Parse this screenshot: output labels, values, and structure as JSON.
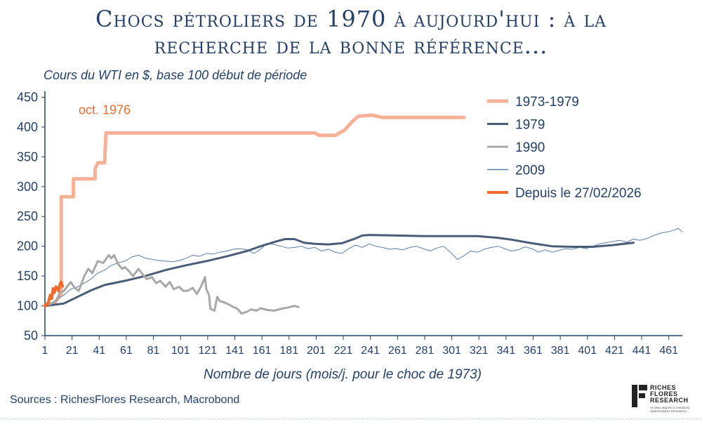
{
  "title_line1": "Chocs pétroliers de 1970 à aujourd'hui : à la",
  "title_line2": "recherche de la bonne référence...",
  "subtitle": "Cours du WTI en $, base 100 début de période",
  "source": "Sources : RichesFlores Research, Macrobond",
  "logo": {
    "line1": "RICHES",
    "line2": "FLORES",
    "line3": "RESEARCH",
    "tagline": "GLOBAL MACRO & THEMATIC INDEPENDENT RESEARCH"
  },
  "chart_data": {
    "type": "line",
    "xlabel": "Nombre de jours (mois/j. pour le choc de 1973)",
    "xlim": [
      1,
      471
    ],
    "ylim": [
      50,
      460
    ],
    "x_ticks": [
      1,
      21,
      41,
      61,
      81,
      101,
      121,
      141,
      161,
      181,
      201,
      221,
      241,
      261,
      281,
      301,
      321,
      341,
      361,
      381,
      401,
      421,
      441,
      461
    ],
    "y_ticks": [
      50,
      100,
      150,
      200,
      250,
      300,
      350,
      400,
      450
    ],
    "annotation": {
      "text": "oct. 1976",
      "x": 45,
      "y": 422,
      "color": "#f06a2b"
    },
    "legend_position": "top-right",
    "series": [
      {
        "name": "1973-1979",
        "color": "#f7b196",
        "width": 5,
        "points": [
          [
            1,
            100
          ],
          [
            8,
            105
          ],
          [
            10,
            110
          ],
          [
            13,
            120
          ],
          [
            13,
            283
          ],
          [
            22,
            283
          ],
          [
            22,
            313
          ],
          [
            38,
            313
          ],
          [
            38,
            330
          ],
          [
            40,
            340
          ],
          [
            45,
            340
          ],
          [
            46,
            390
          ],
          [
            200,
            390
          ],
          [
            203,
            386
          ],
          [
            215,
            386
          ],
          [
            222,
            395
          ],
          [
            224,
            400
          ],
          [
            228,
            410
          ],
          [
            232,
            418
          ],
          [
            242,
            420
          ],
          [
            250,
            416
          ],
          [
            310,
            416
          ]
        ]
      },
      {
        "name": "1979",
        "color": "#4a5d78",
        "width": 3,
        "points": [
          [
            1,
            100
          ],
          [
            5,
            101
          ],
          [
            15,
            104
          ],
          [
            25,
            115
          ],
          [
            35,
            126
          ],
          [
            45,
            135
          ],
          [
            60,
            142
          ],
          [
            75,
            150
          ],
          [
            90,
            160
          ],
          [
            105,
            168
          ],
          [
            120,
            175
          ],
          [
            135,
            183
          ],
          [
            150,
            192
          ],
          [
            160,
            200
          ],
          [
            170,
            207
          ],
          [
            178,
            212
          ],
          [
            185,
            212
          ],
          [
            192,
            206
          ],
          [
            200,
            204
          ],
          [
            210,
            203
          ],
          [
            220,
            205
          ],
          [
            230,
            213
          ],
          [
            235,
            218
          ],
          [
            240,
            219
          ],
          [
            260,
            218
          ],
          [
            280,
            217
          ],
          [
            300,
            217
          ],
          [
            320,
            217
          ],
          [
            335,
            214
          ],
          [
            345,
            211
          ],
          [
            360,
            205
          ],
          [
            375,
            200
          ],
          [
            390,
            199
          ],
          [
            405,
            199
          ],
          [
            420,
            202
          ],
          [
            435,
            206
          ]
        ]
      },
      {
        "name": "1990",
        "color": "#a8a8a8",
        "width": 3,
        "points": [
          [
            1,
            100
          ],
          [
            5,
            103
          ],
          [
            9,
            108
          ],
          [
            12,
            122
          ],
          [
            15,
            125
          ],
          [
            18,
            134
          ],
          [
            20,
            140
          ],
          [
            23,
            130
          ],
          [
            26,
            125
          ],
          [
            30,
            150
          ],
          [
            33,
            162
          ],
          [
            36,
            155
          ],
          [
            40,
            175
          ],
          [
            44,
            172
          ],
          [
            48,
            185
          ],
          [
            50,
            180
          ],
          [
            52,
            185
          ],
          [
            55,
            170
          ],
          [
            58,
            162
          ],
          [
            60,
            165
          ],
          [
            63,
            158
          ],
          [
            66,
            150
          ],
          [
            70,
            162
          ],
          [
            73,
            153
          ],
          [
            76,
            145
          ],
          [
            80,
            148
          ],
          [
            83,
            138
          ],
          [
            86,
            142
          ],
          [
            90,
            132
          ],
          [
            93,
            140
          ],
          [
            96,
            128
          ],
          [
            100,
            132
          ],
          [
            103,
            125
          ],
          [
            106,
            125
          ],
          [
            110,
            130
          ],
          [
            113,
            120
          ],
          [
            116,
            132
          ],
          [
            119,
            148
          ],
          [
            120,
            128
          ],
          [
            122,
            118
          ],
          [
            123,
            95
          ],
          [
            126,
            92
          ],
          [
            128,
            115
          ],
          [
            130,
            108
          ],
          [
            133,
            106
          ],
          [
            136,
            103
          ],
          [
            140,
            98
          ],
          [
            143,
            95
          ],
          [
            146,
            87
          ],
          [
            150,
            90
          ],
          [
            153,
            94
          ],
          [
            157,
            92
          ],
          [
            160,
            96
          ],
          [
            165,
            93
          ],
          [
            170,
            92
          ],
          [
            175,
            95
          ],
          [
            180,
            97
          ],
          [
            185,
            100
          ],
          [
            188,
            98
          ]
        ]
      },
      {
        "name": "2009",
        "color": "#5b7da8",
        "width": 1,
        "points": [
          [
            1,
            100
          ],
          [
            6,
            104
          ],
          [
            10,
            112
          ],
          [
            15,
            118
          ],
          [
            20,
            128
          ],
          [
            25,
            132
          ],
          [
            30,
            138
          ],
          [
            35,
            145
          ],
          [
            40,
            155
          ],
          [
            45,
            160
          ],
          [
            50,
            168
          ],
          [
            55,
            172
          ],
          [
            60,
            175
          ],
          [
            65,
            182
          ],
          [
            70,
            185
          ],
          [
            75,
            180
          ],
          [
            80,
            178
          ],
          [
            85,
            176
          ],
          [
            90,
            175
          ],
          [
            95,
            174
          ],
          [
            100,
            176
          ],
          [
            105,
            180
          ],
          [
            110,
            185
          ],
          [
            115,
            183
          ],
          [
            120,
            188
          ],
          [
            125,
            187
          ],
          [
            130,
            190
          ],
          [
            135,
            192
          ],
          [
            140,
            195
          ],
          [
            145,
            196
          ],
          [
            150,
            194
          ],
          [
            155,
            188
          ],
          [
            160,
            195
          ],
          [
            165,
            205
          ],
          [
            170,
            203
          ],
          [
            175,
            200
          ],
          [
            180,
            197
          ],
          [
            185,
            198
          ],
          [
            190,
            200
          ],
          [
            195,
            196
          ],
          [
            200,
            198
          ],
          [
            205,
            192
          ],
          [
            210,
            195
          ],
          [
            215,
            190
          ],
          [
            220,
            188
          ],
          [
            225,
            196
          ],
          [
            230,
            202
          ],
          [
            235,
            198
          ],
          [
            240,
            204
          ],
          [
            245,
            200
          ],
          [
            250,
            198
          ],
          [
            255,
            195
          ],
          [
            260,
            196
          ],
          [
            265,
            194
          ],
          [
            270,
            198
          ],
          [
            275,
            200
          ],
          [
            280,
            196
          ],
          [
            285,
            192
          ],
          [
            290,
            197
          ],
          [
            295,
            200
          ],
          [
            300,
            190
          ],
          [
            305,
            178
          ],
          [
            310,
            184
          ],
          [
            315,
            192
          ],
          [
            320,
            190
          ],
          [
            325,
            195
          ],
          [
            330,
            198
          ],
          [
            335,
            200
          ],
          [
            340,
            196
          ],
          [
            345,
            192
          ],
          [
            350,
            194
          ],
          [
            355,
            199
          ],
          [
            360,
            196
          ],
          [
            365,
            190
          ],
          [
            370,
            194
          ],
          [
            375,
            190
          ],
          [
            380,
            193
          ],
          [
            385,
            196
          ],
          [
            390,
            195
          ],
          [
            395,
            198
          ],
          [
            400,
            196
          ],
          [
            405,
            200
          ],
          [
            410,
            204
          ],
          [
            415,
            206
          ],
          [
            420,
            208
          ],
          [
            425,
            210
          ],
          [
            430,
            207
          ],
          [
            435,
            212
          ],
          [
            440,
            210
          ],
          [
            445,
            213
          ],
          [
            450,
            218
          ],
          [
            455,
            222
          ],
          [
            460,
            224
          ],
          [
            465,
            227
          ],
          [
            468,
            230
          ],
          [
            471,
            224
          ]
        ]
      },
      {
        "name": "Depuis le 27/02/2026",
        "color": "#f06a2b",
        "width": 4,
        "points": [
          [
            1,
            100
          ],
          [
            2,
            103
          ],
          [
            3,
            102
          ],
          [
            4,
            110
          ],
          [
            5,
            118
          ],
          [
            6,
            112
          ],
          [
            7,
            129
          ],
          [
            8,
            122
          ],
          [
            9,
            132
          ],
          [
            10,
            130
          ],
          [
            11,
            125
          ],
          [
            12,
            136
          ],
          [
            13,
            140
          ],
          [
            14,
            133
          ]
        ]
      }
    ]
  }
}
